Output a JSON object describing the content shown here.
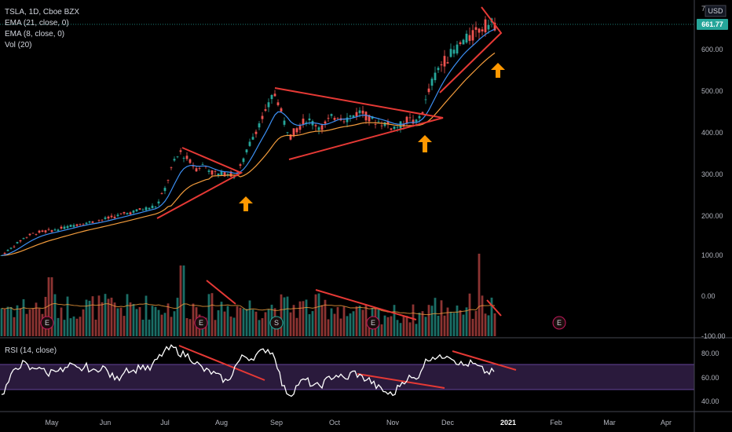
{
  "legend": {
    "symbol": "TSLA, 1D, Cboe BZX",
    "ema21": "EMA (21, close, 0)",
    "ema8": "EMA (8, close, 0)",
    "vol": "Vol (20)"
  },
  "currency": "USD",
  "last_price": "661.77",
  "rsi_label": "RSI (14, close)",
  "colors": {
    "up": "#26a69a",
    "down": "#ef5350",
    "ema21": "#f39c3c",
    "ema8": "#3c8ff3",
    "trend": "#e53935",
    "arrow": "#ff9800",
    "rsi_band": "#2a1a3c",
    "price_label_bg": "#26a69a"
  },
  "chart_data": {
    "type": "candlestick",
    "price_axis_ticks": [
      "700",
      "600.00",
      "500.00",
      "400.00",
      "300.00",
      "200.00",
      "100.00",
      "0.00",
      "-100.00"
    ],
    "rsi_axis_ticks": [
      "80.00",
      "60.00",
      "40.00"
    ],
    "x_axis_labels": [
      "May",
      "Jun",
      "Jul",
      "Aug",
      "Sep",
      "Oct",
      "Nov",
      "Dec",
      "2021",
      "Feb",
      "Mar",
      "Apr"
    ],
    "earnings_markers": [
      "E",
      "E",
      "S",
      "E",
      "E"
    ],
    "price_path": [
      [
        0,
        95
      ],
      [
        10,
        110
      ],
      [
        20,
        125
      ],
      [
        30,
        140
      ],
      [
        40,
        150
      ],
      [
        50,
        155
      ],
      [
        60,
        158
      ],
      [
        70,
        160
      ],
      [
        80,
        165
      ],
      [
        90,
        170
      ],
      [
        100,
        175
      ],
      [
        110,
        178
      ],
      [
        120,
        180
      ],
      [
        130,
        185
      ],
      [
        140,
        190
      ],
      [
        150,
        195
      ],
      [
        160,
        200
      ],
      [
        170,
        205
      ],
      [
        180,
        210
      ],
      [
        190,
        215
      ],
      [
        200,
        220
      ],
      [
        210,
        260
      ],
      [
        220,
        320
      ],
      [
        230,
        350
      ],
      [
        240,
        330
      ],
      [
        250,
        310
      ],
      [
        260,
        320
      ],
      [
        270,
        300
      ],
      [
        280,
        295
      ],
      [
        290,
        300
      ],
      [
        300,
        290
      ],
      [
        310,
        330
      ],
      [
        320,
        380
      ],
      [
        330,
        420
      ],
      [
        340,
        450
      ],
      [
        345,
        480
      ],
      [
        350,
        490
      ],
      [
        355,
        470
      ],
      [
        360,
        430
      ],
      [
        370,
        390
      ],
      [
        380,
        410
      ],
      [
        390,
        430
      ],
      [
        400,
        420
      ],
      [
        410,
        410
      ],
      [
        420,
        430
      ],
      [
        430,
        440
      ],
      [
        440,
        430
      ],
      [
        450,
        440
      ],
      [
        460,
        450
      ],
      [
        470,
        430
      ],
      [
        480,
        425
      ],
      [
        490,
        420
      ],
      [
        500,
        410
      ],
      [
        510,
        415
      ],
      [
        520,
        430
      ],
      [
        530,
        420
      ],
      [
        540,
        460
      ],
      [
        550,
        520
      ],
      [
        560,
        560
      ],
      [
        570,
        580
      ],
      [
        580,
        600
      ],
      [
        590,
        620
      ],
      [
        600,
        630
      ],
      [
        610,
        650
      ],
      [
        620,
        660
      ],
      [
        630,
        662
      ]
    ],
    "rsi_path": [
      [
        0,
        42
      ],
      [
        10,
        55
      ],
      [
        20,
        68
      ],
      [
        30,
        72
      ],
      [
        40,
        66
      ],
      [
        50,
        70
      ],
      [
        60,
        62
      ],
      [
        70,
        68
      ],
      [
        80,
        65
      ],
      [
        90,
        70
      ],
      [
        100,
        66
      ],
      [
        110,
        69
      ],
      [
        120,
        64
      ],
      [
        130,
        70
      ],
      [
        140,
        62
      ],
      [
        150,
        58
      ],
      [
        160,
        68
      ],
      [
        170,
        65
      ],
      [
        180,
        70
      ],
      [
        190,
        66
      ],
      [
        200,
        75
      ],
      [
        210,
        82
      ],
      [
        220,
        85
      ],
      [
        230,
        80
      ],
      [
        240,
        78
      ],
      [
        250,
        72
      ],
      [
        260,
        66
      ],
      [
        270,
        64
      ],
      [
        280,
        60
      ],
      [
        290,
        56
      ],
      [
        300,
        70
      ],
      [
        310,
        78
      ],
      [
        320,
        76
      ],
      [
        330,
        80
      ],
      [
        340,
        84
      ],
      [
        350,
        78
      ],
      [
        360,
        52
      ],
      [
        370,
        45
      ],
      [
        380,
        55
      ],
      [
        390,
        58
      ],
      [
        400,
        52
      ],
      [
        410,
        54
      ],
      [
        420,
        60
      ],
      [
        430,
        62
      ],
      [
        440,
        58
      ],
      [
        450,
        65
      ],
      [
        460,
        60
      ],
      [
        470,
        58
      ],
      [
        480,
        52
      ],
      [
        490,
        48
      ],
      [
        500,
        45
      ],
      [
        510,
        55
      ],
      [
        520,
        60
      ],
      [
        530,
        58
      ],
      [
        540,
        72
      ],
      [
        550,
        78
      ],
      [
        560,
        76
      ],
      [
        570,
        80
      ],
      [
        580,
        74
      ],
      [
        590,
        70
      ],
      [
        600,
        72
      ],
      [
        610,
        68
      ],
      [
        620,
        64
      ],
      [
        630,
        65
      ]
    ]
  }
}
